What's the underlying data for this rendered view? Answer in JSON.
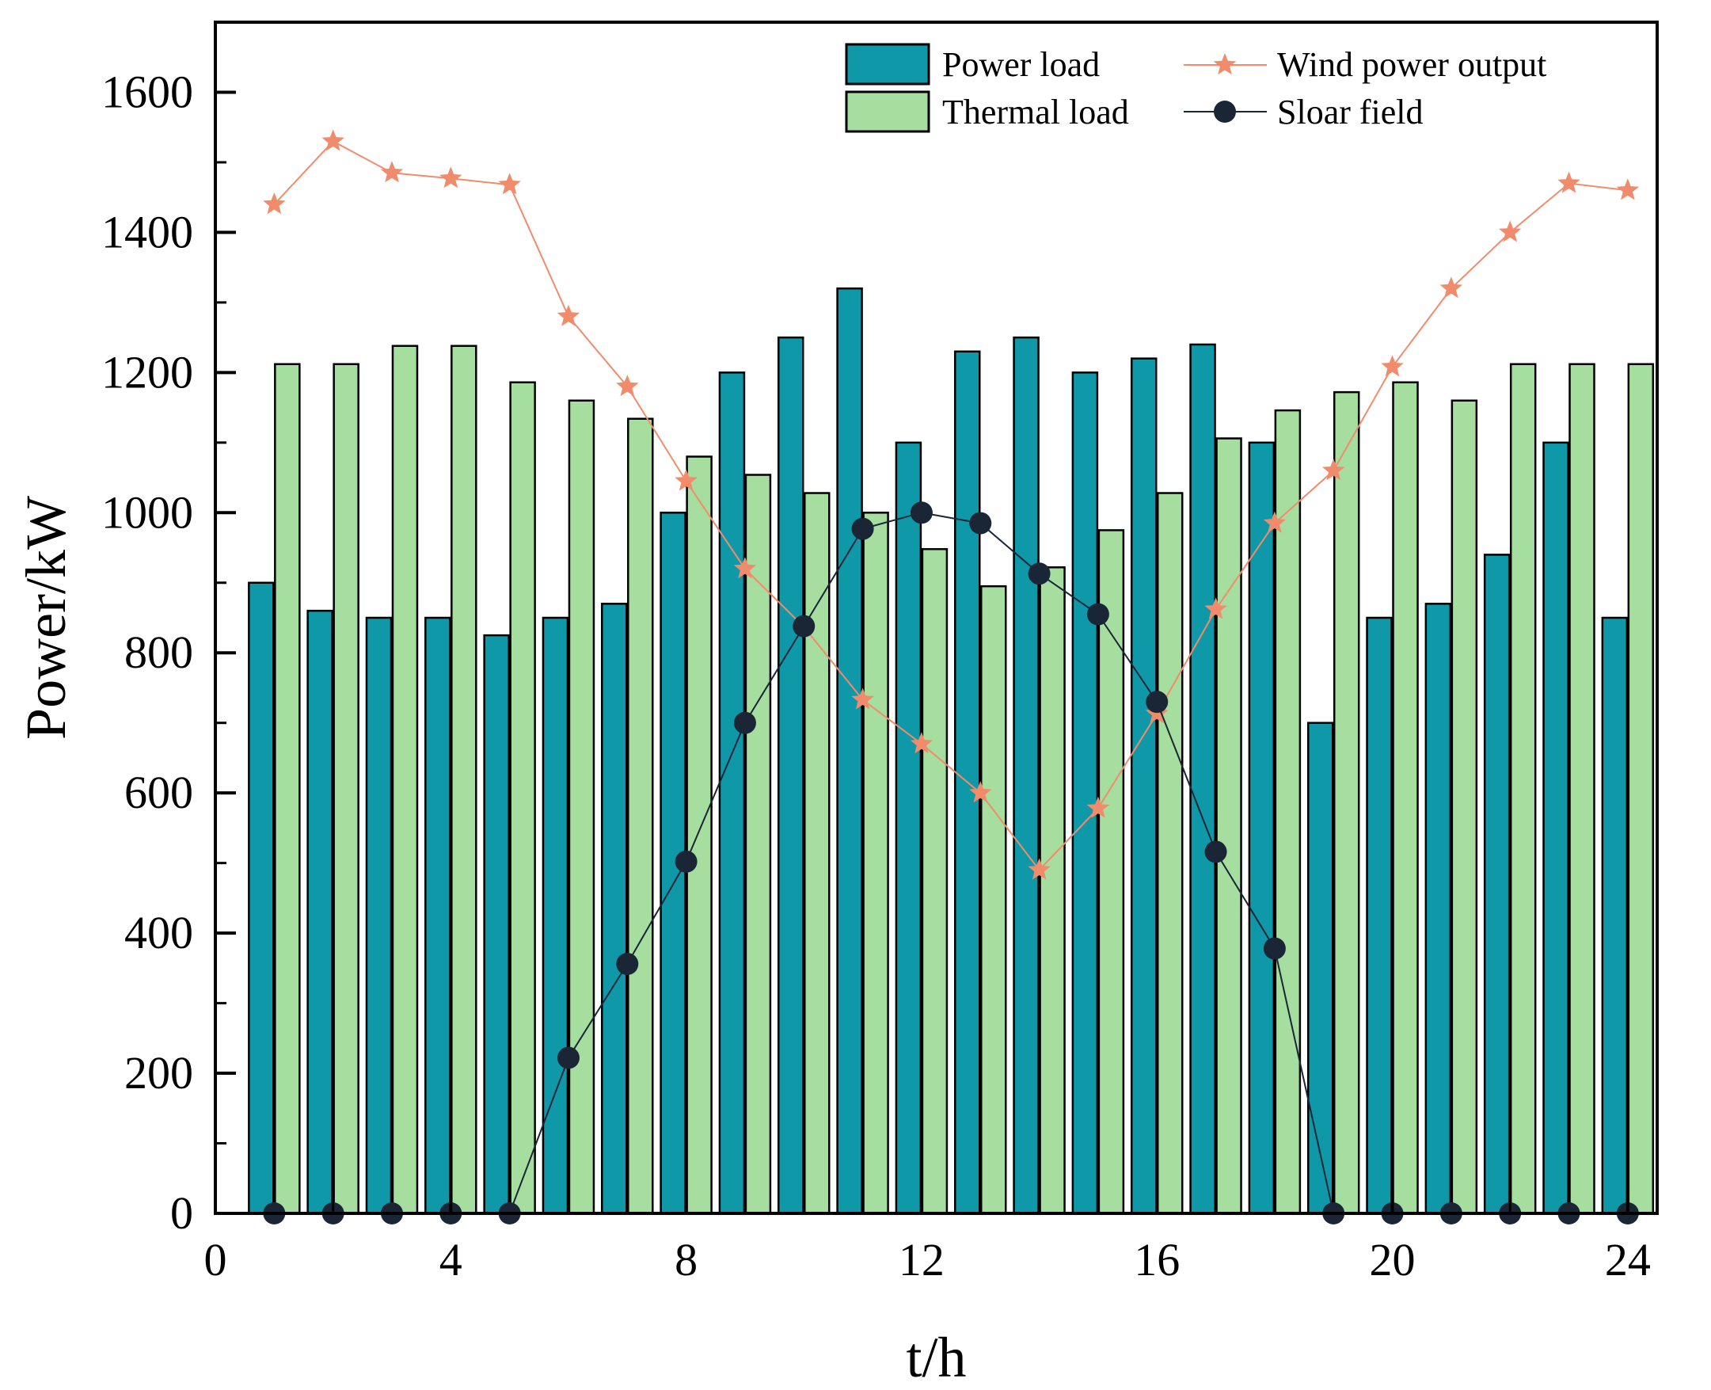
{
  "chart_data": {
    "type": "bar+line",
    "xlabel": "t/h",
    "ylabel": "Power/kW",
    "xlim": [
      0,
      24.5
    ],
    "ylim": [
      0,
      1700
    ],
    "xticks": [
      0,
      4,
      8,
      12,
      16,
      20,
      24
    ],
    "yticks": [
      0,
      200,
      400,
      600,
      800,
      1000,
      1200,
      1400,
      1600
    ],
    "x": [
      1,
      2,
      3,
      4,
      5,
      6,
      7,
      8,
      9,
      10,
      11,
      12,
      13,
      14,
      15,
      16,
      17,
      18,
      19,
      20,
      21,
      22,
      23,
      24
    ],
    "bar_series": [
      {
        "name": "Power load",
        "color": "#0e98a8",
        "values": [
          900,
          860,
          850,
          850,
          825,
          850,
          870,
          1000,
          1200,
          1250,
          1320,
          1100,
          1230,
          1250,
          1200,
          1220,
          1240,
          1100,
          700,
          850,
          870,
          940,
          1100,
          850
        ]
      },
      {
        "name": "Thermal load",
        "color": "#a6dea0",
        "values": [
          1212,
          1212,
          1238,
          1238,
          1186,
          1160,
          1134,
          1080,
          1054,
          1028,
          1000,
          948,
          895,
          922,
          975,
          1028,
          1106,
          1146,
          1172,
          1186,
          1160,
          1212,
          1212,
          1212
        ]
      }
    ],
    "line_series": [
      {
        "name": "Wind power output",
        "color": "#f08c6c",
        "marker": "star",
        "values": [
          1440,
          1530,
          1485,
          1477,
          1468,
          1280,
          1180,
          1045,
          920,
          837,
          733,
          670,
          600,
          490,
          578,
          713,
          862,
          985,
          1060,
          1208,
          1320,
          1400,
          1470,
          1460
        ]
      },
      {
        "name": "Sloar field",
        "color": "#1a2535",
        "marker": "circle",
        "values": [
          0,
          0,
          0,
          0,
          0,
          222,
          356,
          502,
          700,
          838,
          977,
          1000,
          985,
          913,
          855,
          730,
          516,
          378,
          0,
          0,
          0,
          0,
          0,
          0
        ]
      }
    ],
    "legend": {
      "position": "top-right",
      "entries": [
        "Power load",
        "Thermal load",
        "Wind power output",
        "Sloar field"
      ]
    }
  }
}
